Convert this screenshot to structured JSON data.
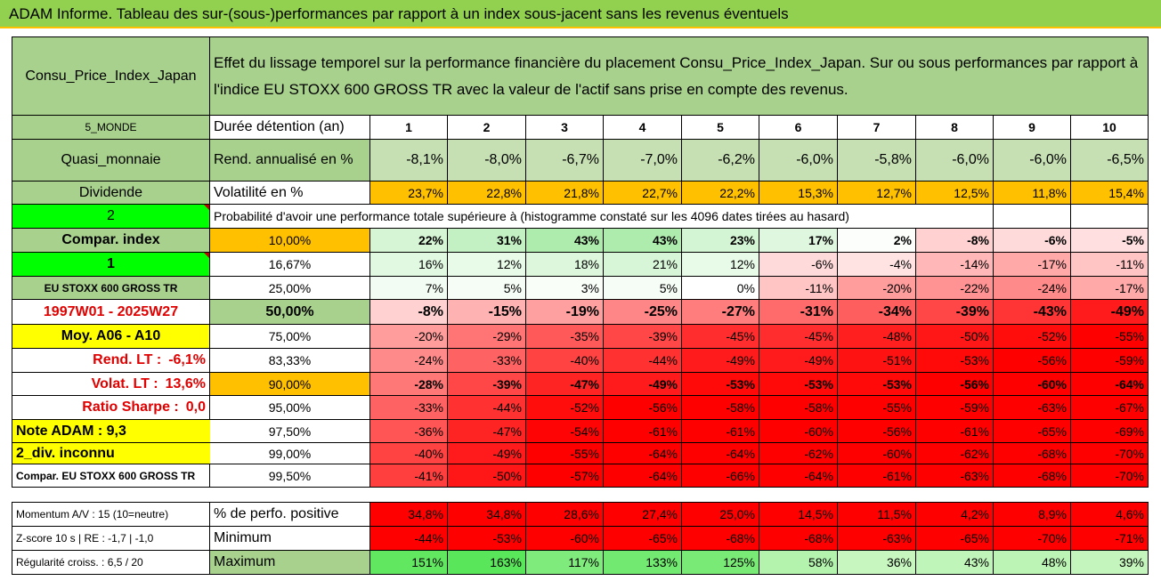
{
  "title": "ADAM Informe. Tableau des sur-(sous-)performances par rapport à un index sous-jacent sans les revenus éventuels",
  "header": {
    "asset": "Consu_Price_Index_Japan",
    "description": "Effet du lissage temporel sur la performance financière du placement Consu_Price_Index_Japan. Sur ou sous performances par rapport à l'indice EU STOXX 600 GROSS TR avec la valeur de l'actif sans prise en compte des revenus."
  },
  "left_panel": {
    "region": "5_MONDE",
    "category": "Quasi_monnaie",
    "dividend": "Dividende",
    "box_value": "2",
    "compar_index": "Compar. index",
    "box_value2": "1",
    "index_name": "EU STOXX 600 GROSS TR",
    "period": "1997W01 - 2025W27",
    "moy": "Moy. A06 - A10",
    "rend_lt_label": "Rend. LT :",
    "rend_lt_value": "-6,1%",
    "volat_lt_label": "Volat. LT :",
    "volat_lt_value": "13,6%",
    "sharpe_label": "Ratio Sharpe :",
    "sharpe_value": "0,0",
    "note_adam": "Note ADAM : 9,3",
    "div_inconnu": "2_div. inconnu",
    "compar_full": "Compar. EU STOXX 600 GROSS TR"
  },
  "colors": {
    "title_bg": "#92d050",
    "header_green": "#a9d18e",
    "orange": "#ffc000",
    "yellow": "#ffff00",
    "bright_green": "#00ff00",
    "red": "#ff0000"
  },
  "table": {
    "hold_label": "Durée détention (an)",
    "years": [
      "1",
      "2",
      "3",
      "4",
      "5",
      "6",
      "7",
      "8",
      "9",
      "10"
    ],
    "rend_label": "Rend. annualisé en %",
    "rend": [
      "-8,1%",
      "-8,0%",
      "-6,7%",
      "-7,0%",
      "-6,2%",
      "-6,0%",
      "-5,8%",
      "-6,0%",
      "-6,0%",
      "-6,5%"
    ],
    "vol_label": "Volatilité en %",
    "vol": [
      "23,7%",
      "22,8%",
      "21,8%",
      "22,7%",
      "22,2%",
      "15,3%",
      "12,7%",
      "12,5%",
      "11,8%",
      "15,4%"
    ],
    "prob_title": "Probabilité d'avoir une performance totale supérieure à (histogramme constaté sur les 4096 dates tirées au hasard)",
    "quantiles": [
      {
        "q": "10,00%",
        "vals": [
          "22%",
          "31%",
          "43%",
          "43%",
          "23%",
          "17%",
          "2%",
          "-8%",
          "-6%",
          "-5%"
        ]
      },
      {
        "q": "16,67%",
        "vals": [
          "16%",
          "12%",
          "18%",
          "21%",
          "12%",
          "-6%",
          "-4%",
          "-14%",
          "-17%",
          "-11%"
        ]
      },
      {
        "q": "25,00%",
        "vals": [
          "7%",
          "5%",
          "3%",
          "5%",
          "0%",
          "-11%",
          "-20%",
          "-22%",
          "-24%",
          "-17%"
        ]
      },
      {
        "q": "50,00%",
        "vals": [
          "-8%",
          "-15%",
          "-19%",
          "-25%",
          "-27%",
          "-31%",
          "-34%",
          "-39%",
          "-43%",
          "-49%"
        ]
      },
      {
        "q": "75,00%",
        "vals": [
          "-20%",
          "-29%",
          "-35%",
          "-39%",
          "-45%",
          "-45%",
          "-48%",
          "-50%",
          "-52%",
          "-55%"
        ]
      },
      {
        "q": "83,33%",
        "vals": [
          "-24%",
          "-33%",
          "-40%",
          "-44%",
          "-49%",
          "-49%",
          "-51%",
          "-53%",
          "-56%",
          "-59%"
        ]
      },
      {
        "q": "90,00%",
        "vals": [
          "-28%",
          "-39%",
          "-47%",
          "-49%",
          "-53%",
          "-53%",
          "-53%",
          "-56%",
          "-60%",
          "-64%"
        ]
      },
      {
        "q": "95,00%",
        "vals": [
          "-33%",
          "-44%",
          "-52%",
          "-56%",
          "-58%",
          "-58%",
          "-55%",
          "-59%",
          "-63%",
          "-67%"
        ]
      },
      {
        "q": "97,50%",
        "vals": [
          "-36%",
          "-47%",
          "-54%",
          "-61%",
          "-61%",
          "-60%",
          "-56%",
          "-61%",
          "-65%",
          "-69%"
        ]
      },
      {
        "q": "99,00%",
        "vals": [
          "-40%",
          "-49%",
          "-55%",
          "-64%",
          "-64%",
          "-62%",
          "-60%",
          "-62%",
          "-68%",
          "-70%"
        ]
      },
      {
        "q": "99,50%",
        "vals": [
          "-41%",
          "-50%",
          "-57%",
          "-64%",
          "-66%",
          "-64%",
          "-61%",
          "-63%",
          "-68%",
          "-70%"
        ]
      }
    ],
    "momentum_label": "Momentum A/V : 15 (10=neutre)",
    "pos_label": "% de perfo. positive",
    "pos": [
      "34,8%",
      "34,8%",
      "28,6%",
      "27,4%",
      "25,0%",
      "14,5%",
      "11,5%",
      "4,2%",
      "8,9%",
      "4,6%"
    ],
    "zscore_label": "Z-score 10 s | RE : -1,7 | -1,0",
    "min_label": "Minimum",
    "min": [
      "-44%",
      "-53%",
      "-60%",
      "-65%",
      "-68%",
      "-68%",
      "-63%",
      "-65%",
      "-70%",
      "-71%"
    ],
    "regul_label": "Régularité croiss. : 6,5 / 20",
    "max_label": "Maximum",
    "max": [
      "151%",
      "163%",
      "117%",
      "133%",
      "125%",
      "58%",
      "36%",
      "43%",
      "48%",
      "39%"
    ]
  }
}
